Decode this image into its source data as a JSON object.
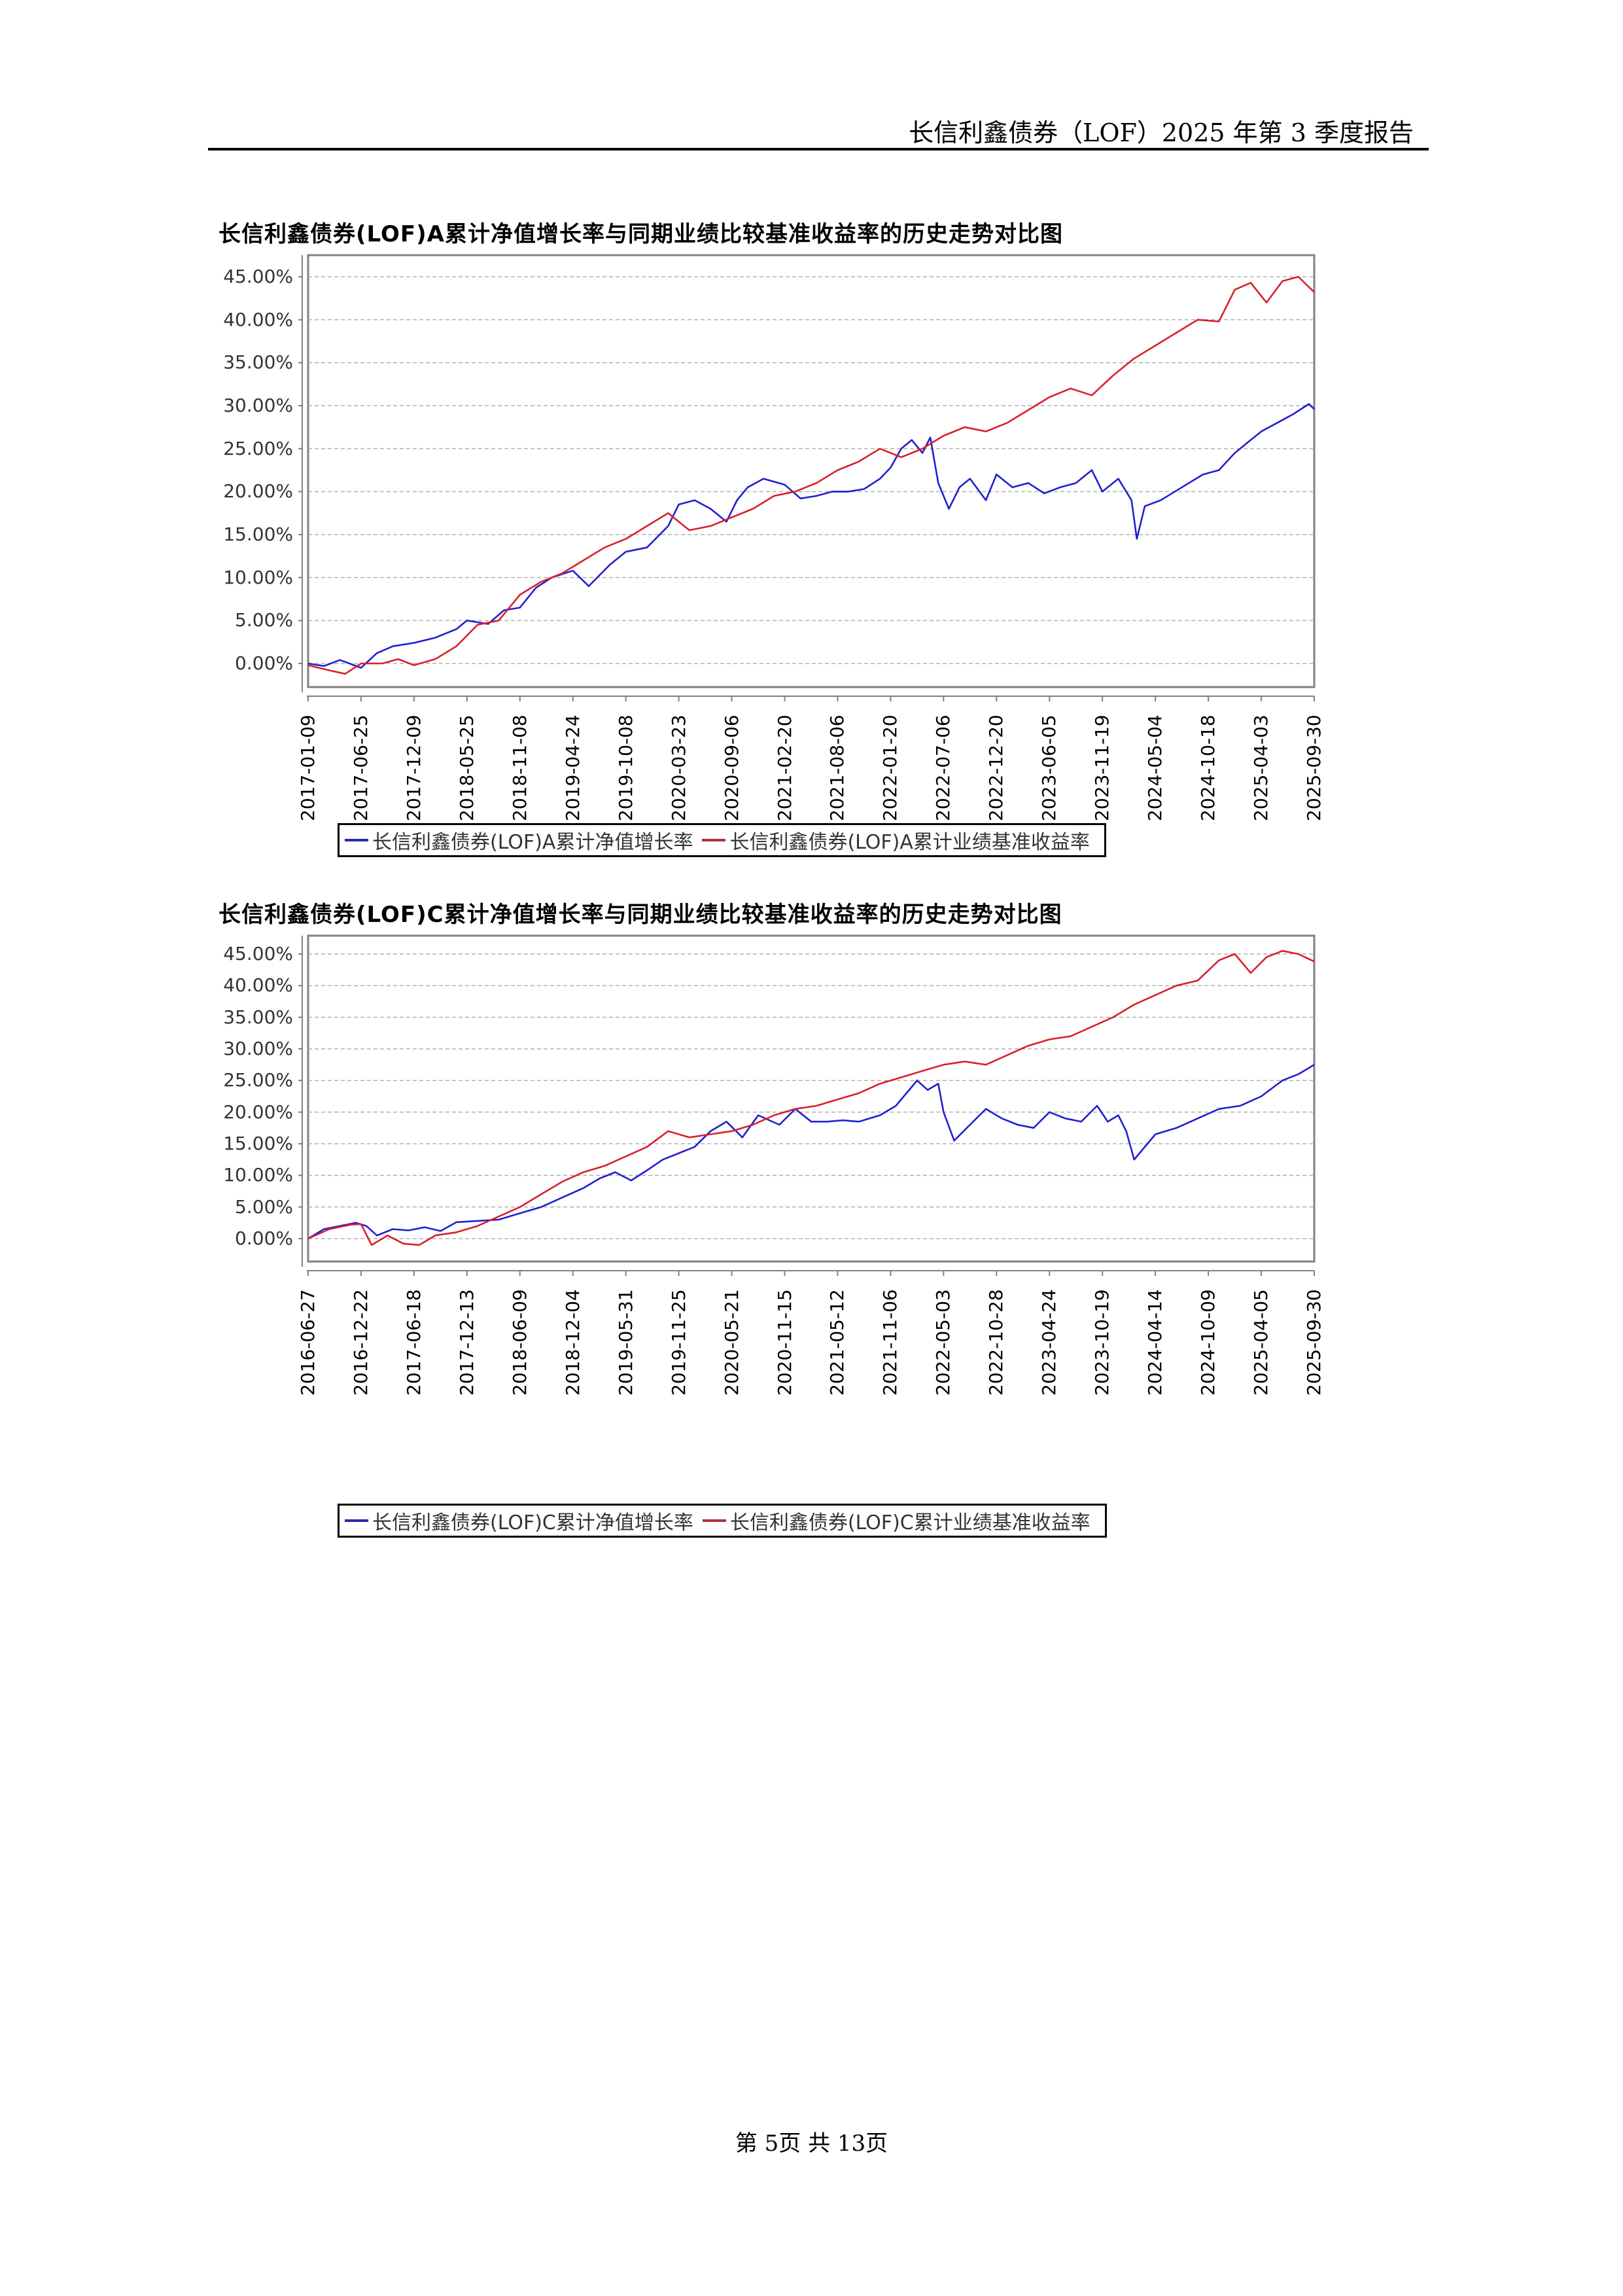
{
  "header": {
    "title": "长信利鑫债券（LOF）2025 年第 3 季度报告"
  },
  "footer": {
    "page_text": "第  5页  共  13页"
  },
  "colors": {
    "fund": "#2020d0",
    "benchmark": "#d8202c",
    "grid": "#b0b0b0",
    "axis": "#808080"
  },
  "chart_data": [
    {
      "type": "line",
      "title": "长信利鑫债券(LOF)A累计净值增长率与同期业绩比较基准收益率的历史走势对比图",
      "xlabel": "",
      "ylabel": "",
      "ylim": [
        -3.0,
        48.5
      ],
      "yticks": [
        "45.00%",
        "40.00%",
        "35.00%",
        "30.00%",
        "25.00%",
        "20.00%",
        "15.00%",
        "10.00%",
        "5.00%",
        "0.00%"
      ],
      "ytick_values": [
        45,
        40,
        35,
        30,
        25,
        20,
        15,
        10,
        5,
        0
      ],
      "grid": true,
      "legend_position": "bottom",
      "categories": [
        "2017-01-09",
        "2017-06-25",
        "2017-12-09",
        "2018-05-25",
        "2018-11-08",
        "2019-04-24",
        "2019-10-08",
        "2020-03-23",
        "2020-09-06",
        "2021-02-20",
        "2021-08-06",
        "2022-01-20",
        "2022-07-06",
        "2022-12-20",
        "2023-06-05",
        "2023-11-19",
        "2024-05-04",
        "2024-10-18",
        "2025-04-03",
        "2025-09-30"
      ],
      "series": [
        {
          "name": "长信利鑫债券(LOF)A累计净值增长率",
          "color": "#2020d0",
          "x": [
            0,
            0.3,
            0.6,
            1.0,
            1.3,
            1.6,
            2.0,
            2.4,
            2.8,
            3.0,
            3.4,
            3.7,
            4.0,
            4.3,
            4.6,
            5.0,
            5.3,
            5.7,
            6.0,
            6.4,
            6.8,
            7.0,
            7.3,
            7.6,
            7.9,
            8.1,
            8.3,
            8.6,
            9.0,
            9.3,
            9.6,
            9.9,
            10.2,
            10.5,
            10.8,
            11.0,
            11.2,
            11.4,
            11.6,
            11.75,
            11.9,
            12.1,
            12.3,
            12.5,
            12.8,
            13.0,
            13.3,
            13.6,
            13.9,
            14.2,
            14.5,
            14.8,
            15.0,
            15.3,
            15.55,
            15.65,
            15.8,
            16.1,
            16.5,
            16.9,
            17.2,
            17.5,
            17.8,
            18.0,
            18.3,
            18.6,
            18.9,
            19.0
          ],
          "y": [
            0.0,
            -0.3,
            0.4,
            -0.5,
            1.2,
            2.0,
            2.4,
            3.0,
            4.0,
            5.0,
            4.6,
            6.2,
            6.5,
            8.8,
            10.0,
            10.8,
            9.0,
            11.5,
            13.0,
            13.5,
            16.0,
            18.5,
            19.0,
            18.0,
            16.5,
            19.0,
            20.5,
            21.5,
            20.8,
            19.2,
            19.5,
            20.0,
            20.0,
            20.3,
            21.5,
            22.8,
            25.0,
            26.0,
            24.5,
            26.3,
            21.0,
            18.0,
            20.5,
            21.5,
            19.0,
            22.0,
            20.5,
            21.0,
            19.8,
            20.5,
            21.0,
            22.5,
            20.0,
            21.5,
            19.0,
            14.5,
            18.3,
            19.0,
            20.5,
            22.0,
            22.5,
            24.5,
            26.0,
            27.0,
            28.0,
            29.0,
            30.2,
            29.6
          ]
        },
        {
          "name": "长信利鑫债券(LOF)A累计业绩基准收益率",
          "color": "#d8202c",
          "x": [
            0,
            0.4,
            0.7,
            1.0,
            1.4,
            1.7,
            2.0,
            2.4,
            2.8,
            3.2,
            3.6,
            4.0,
            4.4,
            4.8,
            5.2,
            5.6,
            6.0,
            6.4,
            6.8,
            7.2,
            7.6,
            8.0,
            8.4,
            8.8,
            9.2,
            9.6,
            10.0,
            10.4,
            10.8,
            11.2,
            11.6,
            12.0,
            12.4,
            12.8,
            13.2,
            13.6,
            14.0,
            14.4,
            14.8,
            15.2,
            15.6,
            16.0,
            16.4,
            16.8,
            17.2,
            17.5,
            17.8,
            18.1,
            18.4,
            18.7,
            19.0
          ],
          "y": [
            -0.2,
            -0.8,
            -1.2,
            0.0,
            0.0,
            0.5,
            -0.2,
            0.5,
            2.0,
            4.5,
            5.0,
            8.0,
            9.5,
            10.5,
            12.0,
            13.5,
            14.5,
            16.0,
            17.5,
            15.5,
            16.0,
            17.0,
            18.0,
            19.5,
            20.0,
            21.0,
            22.5,
            23.5,
            25.0,
            24.0,
            25.0,
            26.5,
            27.5,
            27.0,
            28.0,
            29.5,
            31.0,
            32.0,
            31.2,
            33.5,
            35.5,
            37.0,
            38.5,
            40.0,
            39.8,
            43.5,
            44.3,
            42.0,
            44.5,
            45.0,
            43.2
          ]
        }
      ]
    },
    {
      "type": "line",
      "title": "长信利鑫债券(LOF)C累计净值增长率与同期业绩比较基准收益率的历史走势对比图",
      "xlabel": "",
      "ylabel": "",
      "ylim": [
        -3.0,
        48.5
      ],
      "yticks": [
        "45.00%",
        "40.00%",
        "35.00%",
        "30.00%",
        "25.00%",
        "20.00%",
        "15.00%",
        "10.00%",
        "5.00%",
        "0.00%"
      ],
      "ytick_values": [
        45,
        40,
        35,
        30,
        25,
        20,
        15,
        10,
        5,
        0
      ],
      "grid": true,
      "legend_position": "bottom",
      "categories": [
        "2016-06-27",
        "2016-12-22",
        "2017-06-18",
        "2017-12-13",
        "2018-06-09",
        "2018-12-04",
        "2019-05-31",
        "2019-11-25",
        "2020-05-21",
        "2020-11-15",
        "2021-05-12",
        "2021-11-06",
        "2022-05-03",
        "2022-10-28",
        "2023-04-24",
        "2023-10-19",
        "2024-04-14",
        "2024-10-09",
        "2025-04-05",
        "2025-09-30"
      ],
      "series": [
        {
          "name": "长信利鑫债券(LOF)C累计净值增长率",
          "color": "#2020d0",
          "x": [
            0,
            0.3,
            0.6,
            0.9,
            1.1,
            1.3,
            1.6,
            1.9,
            2.2,
            2.5,
            2.8,
            3.2,
            3.6,
            4.0,
            4.4,
            4.8,
            5.2,
            5.5,
            5.8,
            6.1,
            6.4,
            6.7,
            7.0,
            7.3,
            7.6,
            7.9,
            8.2,
            8.5,
            8.9,
            9.2,
            9.5,
            9.8,
            10.1,
            10.4,
            10.8,
            11.1,
            11.4,
            11.5,
            11.7,
            11.9,
            12.0,
            12.2,
            12.5,
            12.8,
            13.1,
            13.4,
            13.7,
            14.0,
            14.3,
            14.6,
            14.9,
            15.1,
            15.3,
            15.45,
            15.6,
            16.0,
            16.4,
            16.8,
            17.2,
            17.6,
            18.0,
            18.4,
            18.7,
            19.0
          ],
          "y": [
            0.0,
            1.5,
            2.0,
            2.5,
            2.0,
            0.5,
            1.5,
            1.3,
            1.8,
            1.2,
            2.6,
            2.8,
            3.0,
            4.0,
            5.0,
            6.5,
            8.0,
            9.5,
            10.5,
            9.2,
            10.8,
            12.5,
            13.5,
            14.5,
            17.0,
            18.5,
            16.0,
            19.5,
            18.0,
            20.5,
            18.5,
            18.5,
            18.7,
            18.5,
            19.5,
            21.0,
            24.0,
            25.0,
            23.5,
            24.5,
            20.0,
            15.5,
            18.0,
            20.5,
            19.0,
            18.0,
            17.5,
            20.0,
            19.0,
            18.5,
            21.0,
            18.5,
            19.5,
            17.0,
            12.5,
            16.5,
            17.5,
            19.0,
            20.5,
            21.0,
            22.5,
            25.0,
            26.0,
            27.5
          ],
          "y_end": 27.3
        },
        {
          "name": "长信利鑫债券(LOF)C累计业绩基准收益率",
          "color": "#d8202c",
          "x": [
            0,
            0.4,
            0.8,
            1.0,
            1.2,
            1.5,
            1.8,
            2.1,
            2.4,
            2.8,
            3.2,
            3.6,
            4.0,
            4.4,
            4.8,
            5.2,
            5.6,
            6.0,
            6.4,
            6.8,
            7.2,
            7.6,
            8.0,
            8.4,
            8.8,
            9.2,
            9.6,
            10.0,
            10.4,
            10.8,
            11.2,
            11.6,
            12.0,
            12.4,
            12.8,
            13.2,
            13.6,
            14.0,
            14.4,
            14.8,
            15.2,
            15.6,
            16.0,
            16.4,
            16.8,
            17.2,
            17.5,
            17.8,
            18.1,
            18.4,
            18.7,
            19.0
          ],
          "y": [
            0.0,
            1.5,
            2.2,
            2.3,
            -1.0,
            0.5,
            -0.8,
            -1.0,
            0.5,
            1.0,
            2.0,
            3.5,
            5.0,
            7.0,
            9.0,
            10.5,
            11.5,
            13.0,
            14.5,
            17.0,
            16.0,
            16.5,
            17.0,
            18.0,
            19.5,
            20.5,
            21.0,
            22.0,
            23.0,
            24.5,
            25.5,
            26.5,
            27.5,
            28.0,
            27.5,
            29.0,
            30.5,
            31.5,
            32.0,
            33.5,
            35.0,
            37.0,
            38.5,
            40.0,
            40.8,
            44.0,
            45.0,
            42.0,
            44.5,
            45.5,
            45.0,
            43.8
          ]
        }
      ]
    }
  ],
  "legend_a": {
    "fund": "长信利鑫债券(LOF)A累计净值增长率",
    "benchmark": "长信利鑫债券(LOF)A累计业绩基准收益率"
  },
  "legend_c": {
    "fund": "长信利鑫债券(LOF)C累计净值增长率",
    "benchmark": "长信利鑫债券(LOF)C累计业绩基准收益率"
  }
}
